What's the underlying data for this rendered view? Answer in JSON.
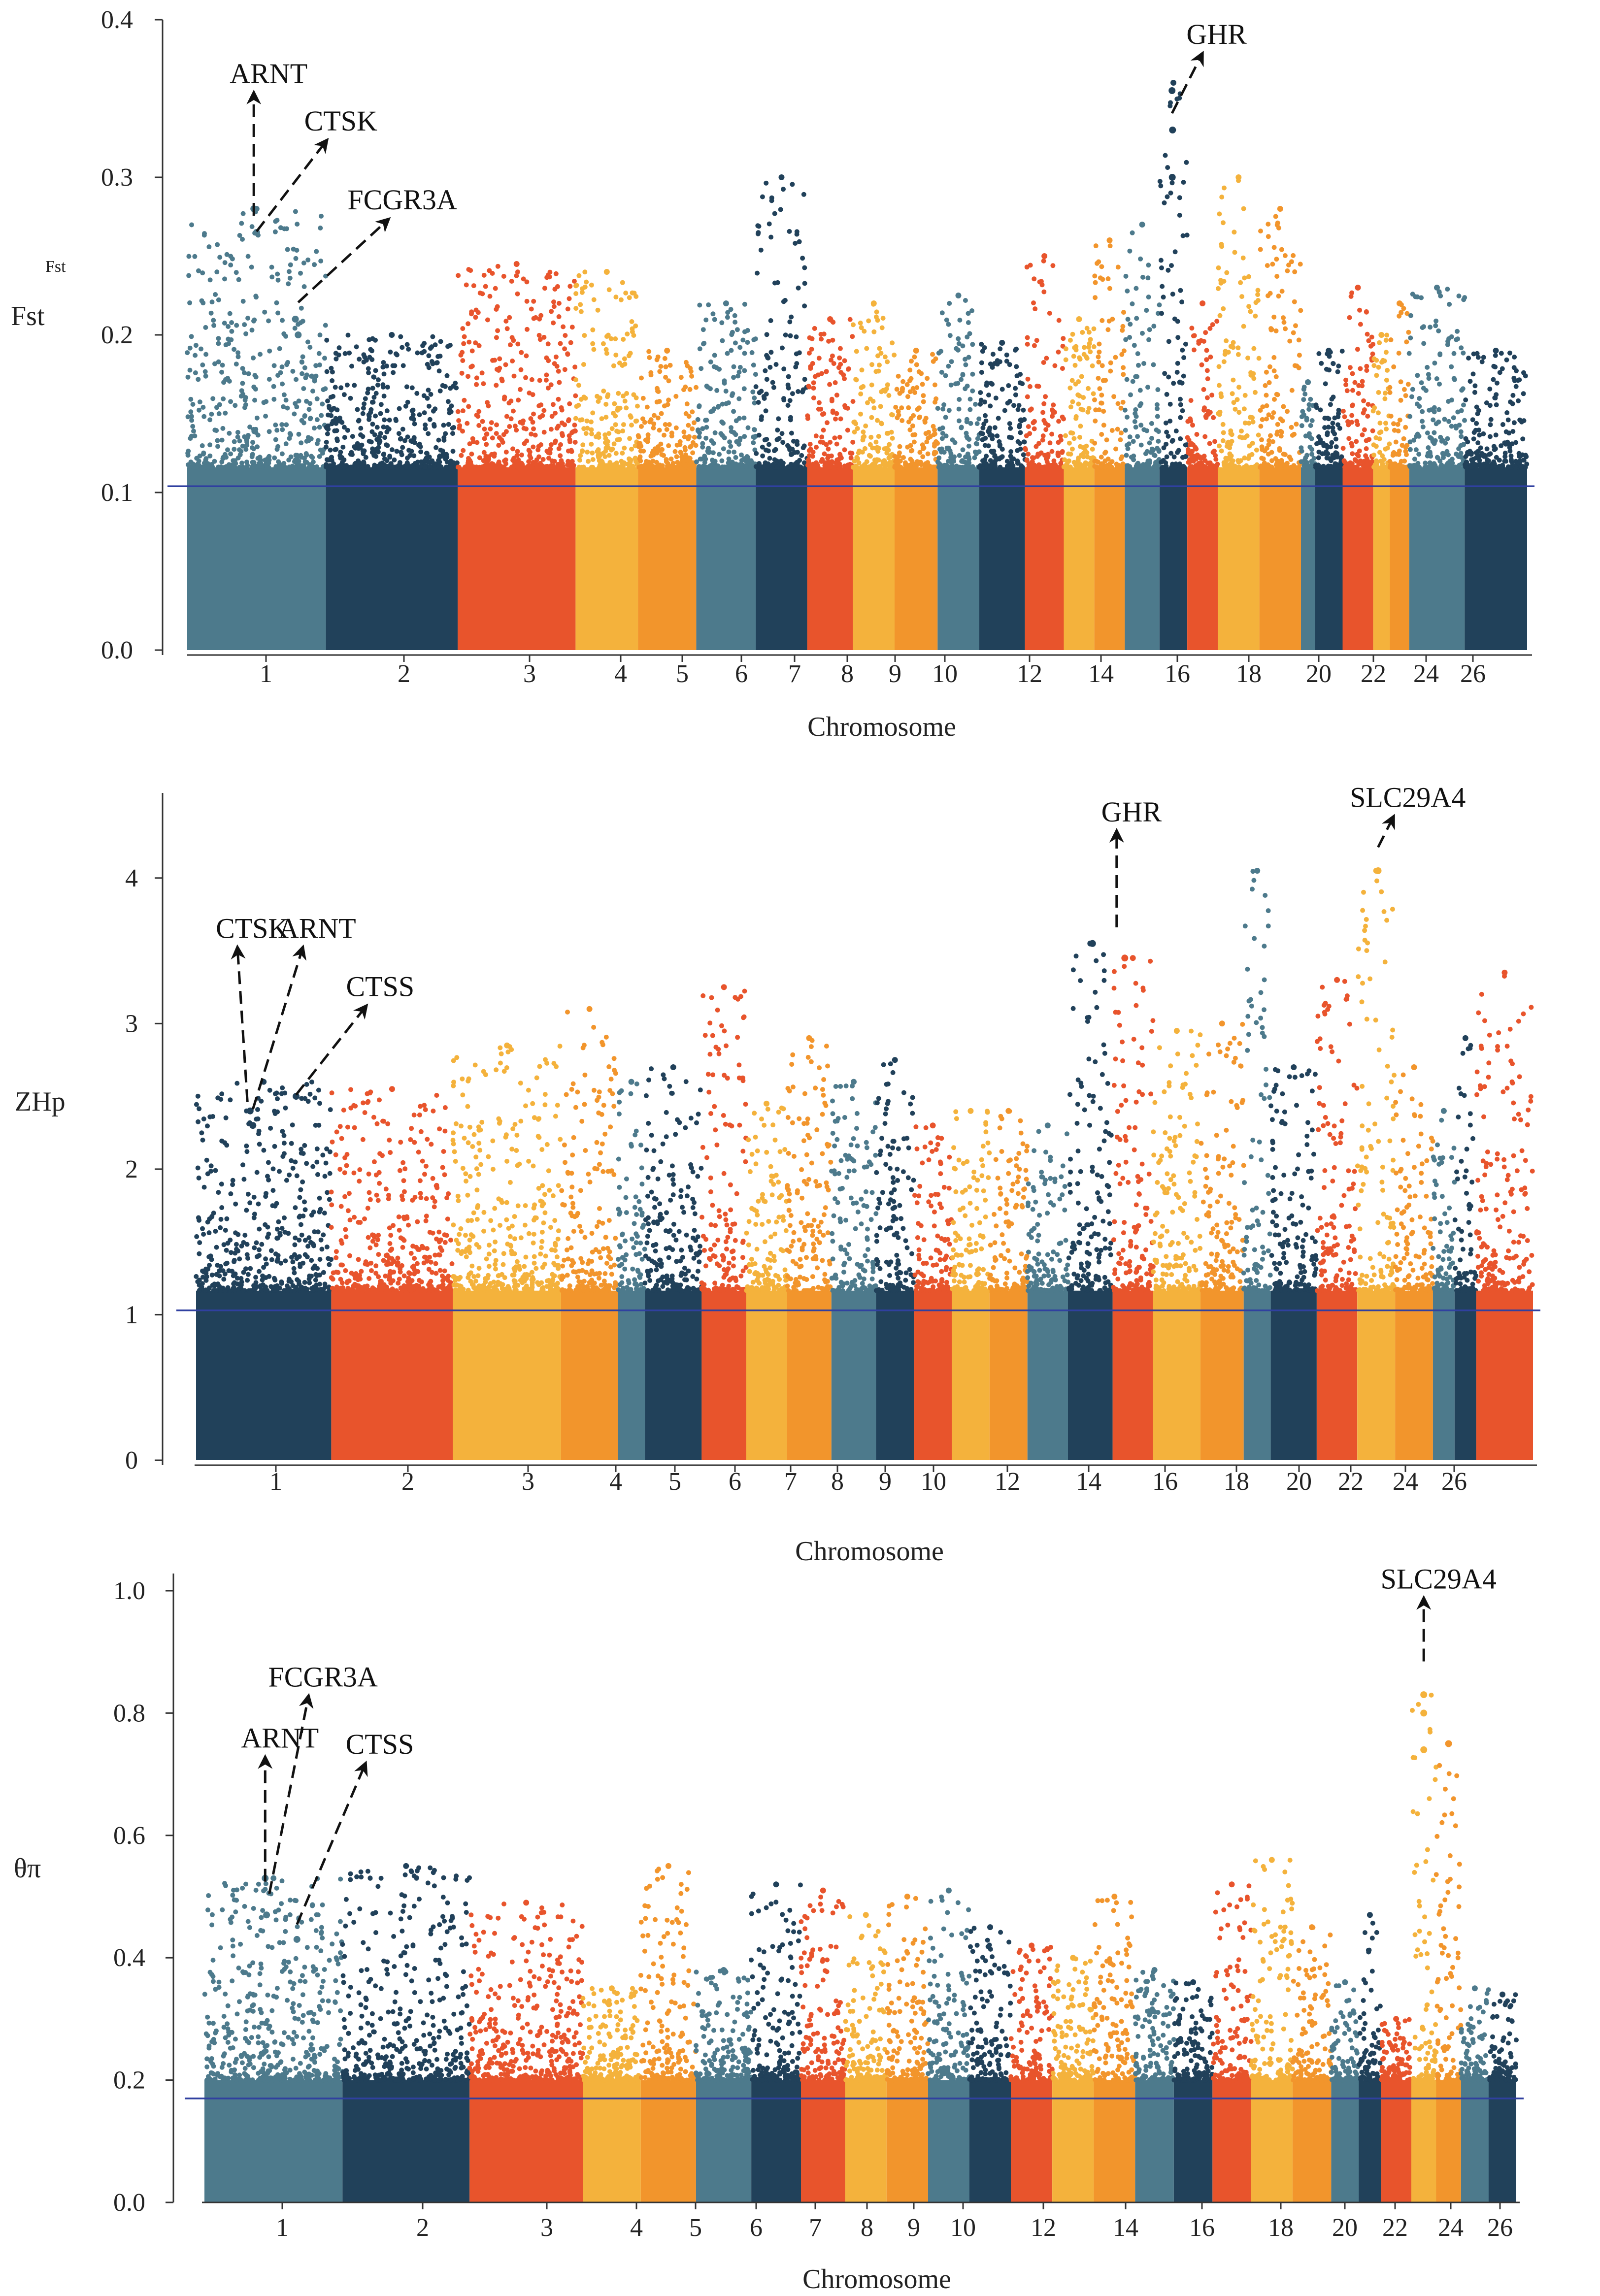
{
  "colors": {
    "palette": [
      "#4d7a8c",
      "#21415a",
      "#e8542c",
      "#f4b23c",
      "#f2952c"
    ],
    "threshold": "#3040a0",
    "axis": "#333333"
  },
  "chart_data": [
    {
      "id": "fst",
      "type": "scatter",
      "ylabel": "Fst",
      "ylabel_sub": "Fst",
      "xlabel": "Chromosome",
      "ylim": [
        0,
        0.4
      ],
      "yticks": [
        "0.0",
        "0.1",
        "0.2",
        "0.3",
        "0.4"
      ],
      "yticks_values": [
        0.0,
        0.1,
        0.2,
        0.3,
        0.4
      ],
      "threshold": 0.104,
      "x_ticks": [
        "1",
        "2",
        "3",
        "4",
        "5",
        "6",
        "7",
        "8",
        "9",
        "10",
        "12",
        "14",
        "16",
        "18",
        "20",
        "22",
        "24",
        "26"
      ],
      "chromosome_sizes": [
        100,
        95,
        85,
        45,
        42,
        43,
        37,
        33,
        30,
        31,
        30,
        33,
        28,
        22,
        22,
        25,
        20,
        22,
        30,
        30,
        10,
        20,
        22,
        12,
        14,
        40,
        45
      ],
      "chromosome_color_index": [
        0,
        1,
        2,
        3,
        4,
        0,
        1,
        2,
        3,
        4,
        0,
        1,
        2,
        3,
        4,
        0,
        1,
        2,
        3,
        4,
        0,
        1,
        2,
        3,
        4,
        0,
        1
      ],
      "chromosome_peaks": [
        0.28,
        0.2,
        0.245,
        0.24,
        0.19,
        0.22,
        0.3,
        0.21,
        0.22,
        0.19,
        0.225,
        0.195,
        0.25,
        0.21,
        0.26,
        0.27,
        0.36,
        0.22,
        0.3,
        0.28,
        0.17,
        0.19,
        0.23,
        0.2,
        0.22,
        0.23,
        0.19
      ],
      "highlight_points": [
        {
          "chrom": 1,
          "pos": 0.48,
          "value": 0.28
        },
        {
          "chrom": 1,
          "pos": 0.5,
          "value": 0.265
        },
        {
          "chrom": 1,
          "pos": 0.78,
          "value": 0.21
        },
        {
          "chrom": 1,
          "pos": 0.8,
          "value": 0.2
        },
        {
          "chrom": 17,
          "pos": 0.45,
          "value": 0.355
        },
        {
          "chrom": 17,
          "pos": 0.47,
          "value": 0.33
        },
        {
          "chrom": 17,
          "pos": 0.46,
          "value": 0.3
        }
      ],
      "annotations": [
        {
          "label": "ARNT",
          "x_chrom": 1,
          "x_pos": 0.48,
          "value": 0.27,
          "label_value": 0.37,
          "label_dx": 0
        },
        {
          "label": "CTSK",
          "x_chrom": 1,
          "x_pos": 0.5,
          "value": 0.26,
          "label_value": 0.34,
          "label_dx": 1.4
        },
        {
          "label": "FCGR3A",
          "x_chrom": 1,
          "x_pos": 0.8,
          "value": 0.215,
          "label_value": 0.29,
          "label_dx": 1.8
        },
        {
          "label": "GHR",
          "x_chrom": 17,
          "x_pos": 0.45,
          "value": 0.335,
          "label_value": 0.395,
          "label_dx": 0.6
        }
      ]
    },
    {
      "id": "zhp",
      "type": "scatter",
      "ylabel": "ZHp",
      "xlabel": "Chromosome",
      "ylim": [
        0,
        4.5
      ],
      "yticks": [
        "0",
        "1",
        "2",
        "3",
        "4"
      ],
      "yticks_values": [
        0,
        1,
        2,
        3,
        4
      ],
      "threshold": 1.03,
      "x_ticks": [
        "1",
        "2",
        "3",
        "4",
        "5",
        "6",
        "7",
        "8",
        "9",
        "10",
        "12",
        "14",
        "16",
        "18",
        "20",
        "22",
        "24",
        "26"
      ],
      "chromosome_sizes": [
        100,
        90,
        80,
        42,
        20,
        42,
        33,
        30,
        33,
        33,
        28,
        28,
        28,
        28,
        30,
        33,
        30,
        35,
        32,
        20,
        34,
        30,
        28,
        28,
        16,
        16,
        42
      ],
      "chromosome_color_index": [
        1,
        2,
        3,
        4,
        0,
        1,
        2,
        3,
        4,
        0,
        1,
        2,
        3,
        4,
        0,
        1,
        2,
        3,
        4,
        0,
        1,
        2,
        3,
        4,
        0,
        1,
        2
      ],
      "chromosome_peaks": [
        2.6,
        2.55,
        2.85,
        3.1,
        2.6,
        2.7,
        3.25,
        2.45,
        2.9,
        2.6,
        2.75,
        2.3,
        2.4,
        2.4,
        2.3,
        3.55,
        3.45,
        2.95,
        3.0,
        4.05,
        2.7,
        3.3,
        4.05,
        2.7,
        2.4,
        2.9,
        3.35
      ],
      "highlight_points": [
        {
          "chrom": 1,
          "pos": 0.4,
          "value": 2.4
        },
        {
          "chrom": 1,
          "pos": 0.42,
          "value": 2.3
        },
        {
          "chrom": 1,
          "pos": 0.74,
          "value": 2.5
        },
        {
          "chrom": 16,
          "pos": 0.55,
          "value": 3.55
        },
        {
          "chrom": 17,
          "pos": 0.3,
          "value": 3.45
        },
        {
          "chrom": 23,
          "pos": 0.55,
          "value": 4.05
        }
      ],
      "annotations": [
        {
          "label": "CTSK",
          "x_chrom": 1,
          "x_pos": 0.38,
          "value": 2.4,
          "label_value": 3.7,
          "label_dx": -0.2
        },
        {
          "label": "ARNT",
          "x_chrom": 1,
          "x_pos": 0.42,
          "value": 2.35,
          "label_value": 3.7,
          "label_dx": 1.0
        },
        {
          "label": "CTSS",
          "x_chrom": 1,
          "x_pos": 0.74,
          "value": 2.45,
          "label_value": 3.3,
          "label_dx": 1.4
        },
        {
          "label": "GHR",
          "x_chrom": 17,
          "x_pos": 0.1,
          "value": 3.6,
          "label_value": 4.5,
          "label_dx": 0
        },
        {
          "label": "SLC29A4",
          "x_chrom": 23,
          "x_pos": 0.55,
          "value": 4.15,
          "label_value": 4.6,
          "label_dx": 0.3
        }
      ]
    },
    {
      "id": "pi",
      "type": "scatter",
      "ylabel": "θπ",
      "xlabel": "Chromosome",
      "ylim": [
        0,
        1.0
      ],
      "yticks": [
        "0.0",
        "0.2",
        "0.4",
        "0.6",
        "0.8",
        "1.0"
      ],
      "yticks_values": [
        0.0,
        0.2,
        0.4,
        0.6,
        0.8,
        1.0
      ],
      "threshold": 0.17,
      "x_ticks": [
        "1",
        "2",
        "3",
        "4",
        "5",
        "6",
        "7",
        "8",
        "9",
        "10",
        "12",
        "14",
        "16",
        "18",
        "20",
        "22",
        "24",
        "26"
      ],
      "chromosome_sizes": [
        100,
        92,
        82,
        42,
        40,
        40,
        36,
        32,
        30,
        30,
        30,
        30,
        30,
        30,
        30,
        28,
        28,
        28,
        30,
        28,
        20,
        16,
        22,
        18,
        18,
        20,
        20
      ],
      "chromosome_color_index": [
        0,
        1,
        2,
        3,
        4,
        0,
        1,
        2,
        3,
        4,
        0,
        1,
        2,
        3,
        4,
        0,
        1,
        2,
        3,
        4,
        0,
        1,
        2,
        3,
        4,
        0,
        1
      ],
      "chromosome_peaks": [
        0.53,
        0.55,
        0.49,
        0.35,
        0.55,
        0.38,
        0.52,
        0.51,
        0.47,
        0.5,
        0.51,
        0.45,
        0.42,
        0.4,
        0.5,
        0.38,
        0.36,
        0.52,
        0.56,
        0.45,
        0.36,
        0.47,
        0.3,
        0.83,
        0.75,
        0.35,
        0.34
      ],
      "highlight_points": [
        {
          "chrom": 1,
          "pos": 0.44,
          "value": 0.53
        },
        {
          "chrom": 1,
          "pos": 0.45,
          "value": 0.47
        },
        {
          "chrom": 1,
          "pos": 0.67,
          "value": 0.43
        },
        {
          "chrom": 24,
          "pos": 0.5,
          "value": 0.83
        },
        {
          "chrom": 24,
          "pos": 0.5,
          "value": 0.8
        },
        {
          "chrom": 24,
          "pos": 0.5,
          "value": 0.74
        },
        {
          "chrom": 25,
          "pos": 0.5,
          "value": 0.75
        }
      ],
      "annotations": [
        {
          "label": "ARNT",
          "x_chrom": 1,
          "x_pos": 0.44,
          "value": 0.51,
          "label_value": 0.77,
          "label_dx": 0
        },
        {
          "label": "FCGR3A",
          "x_chrom": 1,
          "x_pos": 0.47,
          "value": 0.49,
          "label_value": 0.87,
          "label_dx": 0.8
        },
        {
          "label": "CTSS",
          "x_chrom": 1,
          "x_pos": 0.67,
          "value": 0.44,
          "label_value": 0.76,
          "label_dx": 1.4
        },
        {
          "label": "SLC29A4",
          "x_chrom": 24,
          "x_pos": 0.5,
          "value": 0.87,
          "label_value": 1.03,
          "label_dx": 0
        }
      ]
    }
  ]
}
